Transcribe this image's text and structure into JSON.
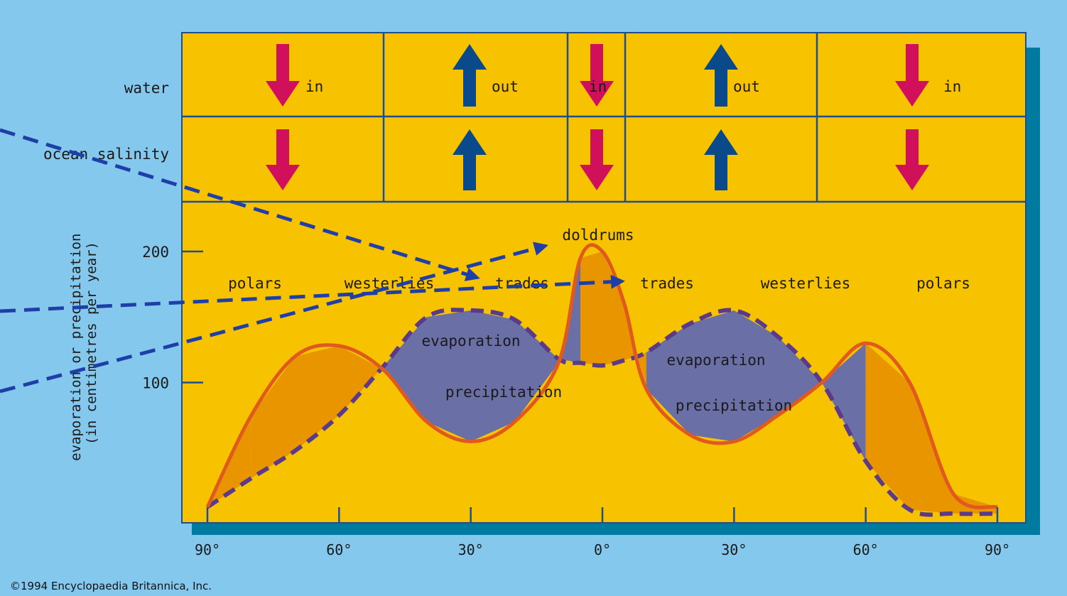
{
  "chart_data": {
    "type": "area",
    "x_unit": "degrees latitude",
    "x": [
      -90,
      -80,
      -70,
      -60,
      -50,
      -40,
      -30,
      -20,
      -10,
      -5,
      0,
      5,
      10,
      20,
      30,
      40,
      50,
      60,
      70,
      80,
      90
    ],
    "xticks": [
      -90,
      -60,
      -30,
      0,
      30,
      60,
      90
    ],
    "xtick_labels": [
      "90°",
      "60°",
      "30°",
      "0°",
      "30°",
      "60°",
      "90°"
    ],
    "ylabel": "evaporation or precipitation\n(in centimetres per year)",
    "yticks": [
      100,
      200
    ],
    "ylim": [
      0,
      240
    ],
    "series": [
      {
        "name": "evaporation",
        "color": "#5b3a8a",
        "style": "dashed",
        "values": [
          5,
          27,
          48,
          75,
          112,
          150,
          155,
          148,
          118,
          115,
          113,
          117,
          123,
          145,
          155,
          135,
          100,
          40,
          3,
          0,
          0
        ]
      },
      {
        "name": "precipitation",
        "color": "#e05a1e",
        "style": "solid",
        "values": [
          5,
          75,
          120,
          128,
          110,
          70,
          55,
          70,
          115,
          195,
          200,
          160,
          95,
          60,
          55,
          75,
          100,
          130,
          100,
          15,
          5
        ]
      }
    ],
    "fill_labels": {
      "evaporation": "evaporation",
      "precipitation": "precipitation"
    },
    "wind_labels": [
      "polars",
      "westerlies",
      "trades",
      "trades",
      "westerlies",
      "polars"
    ],
    "doldrums_label": "doldrums",
    "grid": false,
    "colors": {
      "background": "#85c8ee",
      "panel": "#f7c300",
      "shadow": "#007a9e",
      "evap_excess": "#6a6fa5",
      "precip_excess": "#e89500",
      "border": "#1f4e8c",
      "in_arrow": "#d0105a",
      "out_arrow": "#0b4a8a"
    }
  },
  "table": {
    "row_labels": {
      "water": "water",
      "salinity": "ocean salinity"
    },
    "zones": [
      {
        "water_dir": "in",
        "water_label": "in",
        "salinity_dir": "down"
      },
      {
        "water_dir": "out",
        "water_label": "out",
        "salinity_dir": "up"
      },
      {
        "water_dir": "in",
        "water_label": "in",
        "salinity_dir": "down"
      },
      {
        "water_dir": "out",
        "water_label": "out",
        "salinity_dir": "up"
      },
      {
        "water_dir": "in",
        "water_label": "in",
        "salinity_dir": "down"
      }
    ]
  },
  "copyright": "©1994 Encyclopaedia Britannica, Inc."
}
